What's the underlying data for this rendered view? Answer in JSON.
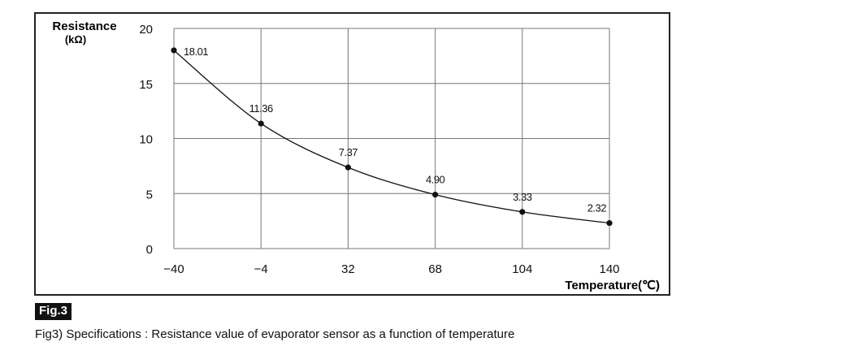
{
  "figure": {
    "badge": "Fig.3",
    "caption": "Fig3) Specifications : Resistance value of evaporator sensor as a function of temperature"
  },
  "chart_data": {
    "type": "line",
    "ylabel": "Resistance",
    "ylabel_unit": "(kΩ)",
    "xlabel": "Temperature(℃)",
    "x_ticks": [
      "−40",
      "−4",
      "32",
      "68",
      "104",
      "140"
    ],
    "y_ticks": [
      "0",
      "5",
      "10",
      "15",
      "20"
    ],
    "xlim": [
      -40,
      140
    ],
    "ylim": [
      0,
      20
    ],
    "grid": true,
    "series": [
      {
        "x": [
          -40,
          -4,
          32,
          68,
          104,
          140
        ],
        "y": [
          18.01,
          11.36,
          7.37,
          4.9,
          3.33,
          2.32
        ],
        "labels": [
          "18.01",
          "11.36",
          "7.37",
          "4.90",
          "3.33",
          "2.32"
        ]
      }
    ]
  }
}
